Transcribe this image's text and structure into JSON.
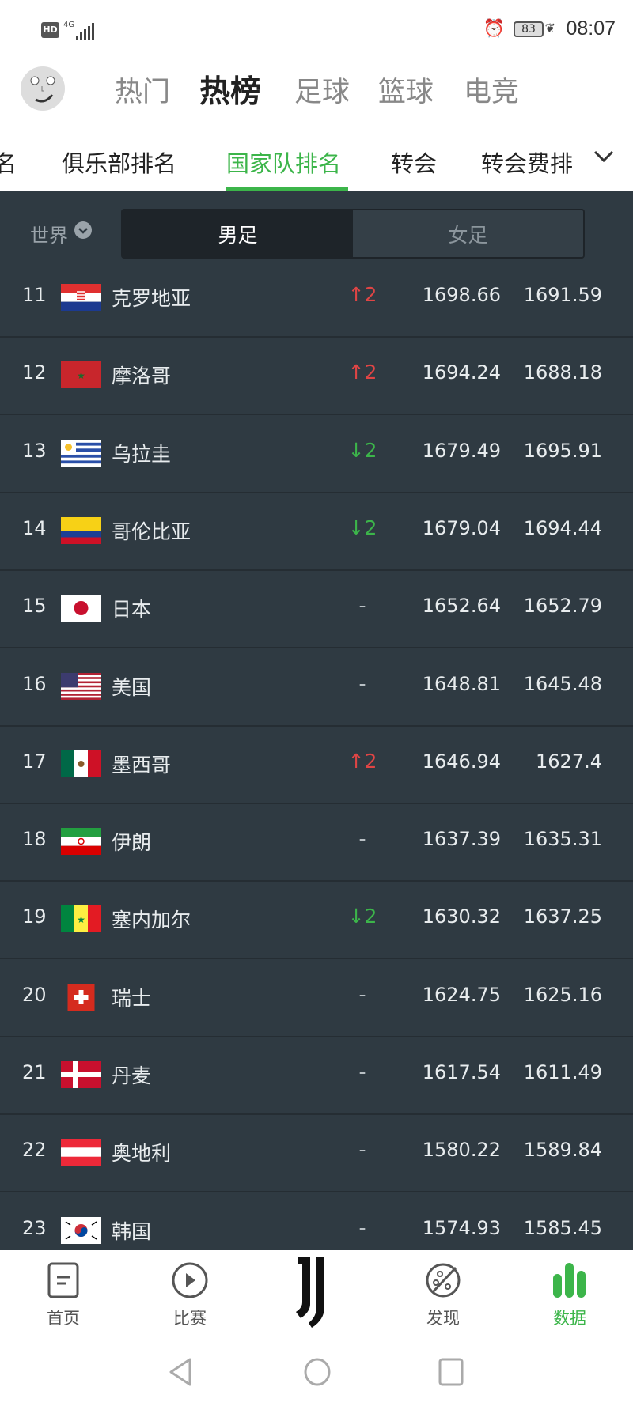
{
  "status_bar": {
    "hd": "HD",
    "network": "4G",
    "battery": "83",
    "time": "08:07"
  },
  "top_tabs": [
    {
      "label": "热门"
    },
    {
      "label": "热榜",
      "active": true
    },
    {
      "label": "足球"
    },
    {
      "label": "篮球"
    },
    {
      "label": "电竞"
    }
  ],
  "sub_tabs": [
    {
      "label": "名"
    },
    {
      "label": "俱乐部排名"
    },
    {
      "label": "国家队排名",
      "active": true
    },
    {
      "label": "转会"
    },
    {
      "label": "转会费排"
    }
  ],
  "filter": {
    "region": "世界",
    "segments": [
      "男足",
      "女足"
    ],
    "selected": "男足"
  },
  "accent": "#3cb54a",
  "up_color": "#e04545",
  "down_color": "#3cb54a",
  "rows": [
    {
      "rank": "11",
      "team": "克罗地亚",
      "flag": "croatia",
      "change": "↑2",
      "dir": "up",
      "points": "1698.66",
      "prev": "1691.59"
    },
    {
      "rank": "12",
      "team": "摩洛哥",
      "flag": "morocco",
      "change": "↑2",
      "dir": "up",
      "points": "1694.24",
      "prev": "1688.18"
    },
    {
      "rank": "13",
      "team": "乌拉圭",
      "flag": "uruguay",
      "change": "↓2",
      "dir": "down",
      "points": "1679.49",
      "prev": "1695.91"
    },
    {
      "rank": "14",
      "team": "哥伦比亚",
      "flag": "colombia",
      "change": "↓2",
      "dir": "down",
      "points": "1679.04",
      "prev": "1694.44"
    },
    {
      "rank": "15",
      "team": "日本",
      "flag": "japan",
      "change": "-",
      "dir": "none",
      "points": "1652.64",
      "prev": "1652.79"
    },
    {
      "rank": "16",
      "team": "美国",
      "flag": "usa",
      "change": "-",
      "dir": "none",
      "points": "1648.81",
      "prev": "1645.48"
    },
    {
      "rank": "17",
      "team": "墨西哥",
      "flag": "mexico",
      "change": "↑2",
      "dir": "up",
      "points": "1646.94",
      "prev": "1627.4"
    },
    {
      "rank": "18",
      "team": "伊朗",
      "flag": "iran",
      "change": "-",
      "dir": "none",
      "points": "1637.39",
      "prev": "1635.31"
    },
    {
      "rank": "19",
      "team": "塞内加尔",
      "flag": "senegal",
      "change": "↓2",
      "dir": "down",
      "points": "1630.32",
      "prev": "1637.25"
    },
    {
      "rank": "20",
      "team": "瑞士",
      "flag": "switzerland",
      "change": "-",
      "dir": "none",
      "points": "1624.75",
      "prev": "1625.16"
    },
    {
      "rank": "21",
      "team": "丹麦",
      "flag": "denmark",
      "change": "-",
      "dir": "none",
      "points": "1617.54",
      "prev": "1611.49"
    },
    {
      "rank": "22",
      "team": "奥地利",
      "flag": "austria",
      "change": "-",
      "dir": "none",
      "points": "1580.22",
      "prev": "1589.84"
    },
    {
      "rank": "23",
      "team": "韩国",
      "flag": "south-korea",
      "change": "-",
      "dir": "none",
      "points": "1574.93",
      "prev": "1585.45"
    }
  ],
  "bottom_nav": [
    {
      "label": "首页",
      "icon": "document-icon"
    },
    {
      "label": "比赛",
      "icon": "play-icon"
    },
    {
      "label": "",
      "icon": "juventus-logo-icon"
    },
    {
      "label": "发现",
      "icon": "planet-icon"
    },
    {
      "label": "数据",
      "icon": "bar-chart-icon",
      "active": true
    }
  ]
}
